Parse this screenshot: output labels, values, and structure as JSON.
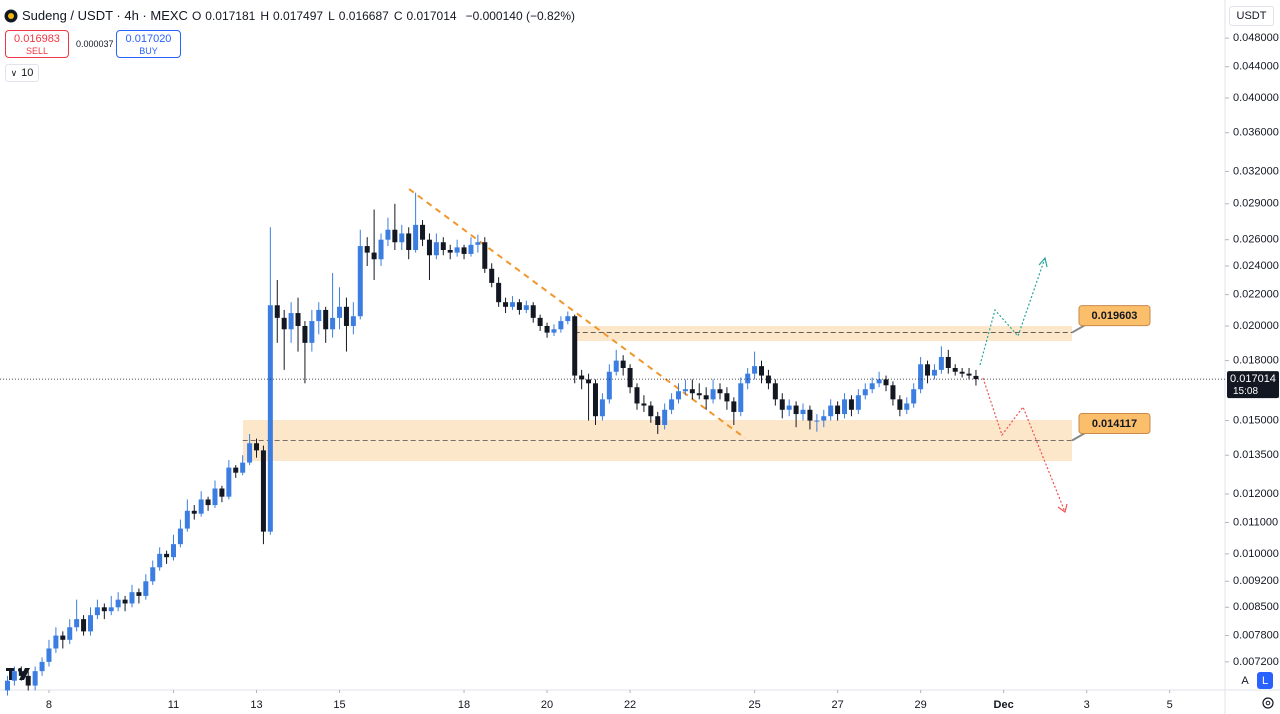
{
  "toolbar": {
    "symbol": "Sudeng / USDT · 4h · MEXC",
    "ohlc_labels": [
      "O",
      "H",
      "L",
      "C"
    ],
    "change": "−0.000140 (−0.82%)",
    "sell_price": "0.016983",
    "sell_label": "SELL",
    "spread": "0.000037",
    "buy_price": "0.017020",
    "buy_label": "BUY",
    "indicators": "10"
  },
  "scale_controls": {
    "currency": "USDT",
    "auto": "A",
    "log": "L",
    "countdown": "15:08"
  },
  "chart_data": {
    "type": "candlestick",
    "log_scale": true,
    "grid": false,
    "up_color": "#3b7de0",
    "down_color": "#131722",
    "candles": [
      [
        0.0066,
        0.0069,
        0.0065,
        0.0068
      ],
      [
        0.0068,
        0.0071,
        0.0067,
        0.007
      ],
      [
        0.007,
        0.0071,
        0.0068,
        0.0069
      ],
      [
        0.0069,
        0.007,
        0.0066,
        0.0067
      ],
      [
        0.0067,
        0.0071,
        0.0066,
        0.007
      ],
      [
        0.007,
        0.0073,
        0.0069,
        0.0072
      ],
      [
        0.0072,
        0.0077,
        0.0071,
        0.0075
      ],
      [
        0.0075,
        0.008,
        0.0074,
        0.0078
      ],
      [
        0.0078,
        0.0079,
        0.0075,
        0.0077
      ],
      [
        0.0077,
        0.0082,
        0.0076,
        0.008
      ],
      [
        0.008,
        0.0087,
        0.0079,
        0.0082
      ],
      [
        0.0082,
        0.0083,
        0.0078,
        0.0079
      ],
      [
        0.0079,
        0.0085,
        0.0078,
        0.0083
      ],
      [
        0.0083,
        0.0087,
        0.0082,
        0.0085
      ],
      [
        0.0085,
        0.0086,
        0.0082,
        0.0084
      ],
      [
        0.0084,
        0.0088,
        0.0083,
        0.0085
      ],
      [
        0.0085,
        0.0089,
        0.0084,
        0.0087
      ],
      [
        0.0087,
        0.0088,
        0.0084,
        0.0086
      ],
      [
        0.0086,
        0.0091,
        0.0085,
        0.0089
      ],
      [
        0.0089,
        0.009,
        0.0086,
        0.0088
      ],
      [
        0.0088,
        0.0094,
        0.0087,
        0.0092
      ],
      [
        0.0092,
        0.0098,
        0.0091,
        0.0096
      ],
      [
        0.0096,
        0.0102,
        0.0095,
        0.01
      ],
      [
        0.01,
        0.0101,
        0.0097,
        0.0099
      ],
      [
        0.0099,
        0.0106,
        0.0098,
        0.0103
      ],
      [
        0.0103,
        0.0111,
        0.0102,
        0.0108
      ],
      [
        0.0108,
        0.0118,
        0.0107,
        0.0114
      ],
      [
        0.0114,
        0.0116,
        0.0111,
        0.0113
      ],
      [
        0.0113,
        0.0121,
        0.0112,
        0.0118
      ],
      [
        0.0118,
        0.0119,
        0.0114,
        0.0116
      ],
      [
        0.0116,
        0.0125,
        0.0115,
        0.0122
      ],
      [
        0.0122,
        0.0123,
        0.0117,
        0.0119
      ],
      [
        0.0119,
        0.0133,
        0.0118,
        0.013
      ],
      [
        0.013,
        0.0131,
        0.0126,
        0.0128
      ],
      [
        0.0128,
        0.0135,
        0.0127,
        0.0132
      ],
      [
        0.0132,
        0.0144,
        0.0131,
        0.014
      ],
      [
        0.014,
        0.0142,
        0.0134,
        0.0137
      ],
      [
        0.0137,
        0.0139,
        0.0103,
        0.0107
      ],
      [
        0.0107,
        0.027,
        0.0106,
        0.0213
      ],
      [
        0.0213,
        0.023,
        0.019,
        0.0205
      ],
      [
        0.0205,
        0.021,
        0.0175,
        0.0198
      ],
      [
        0.0198,
        0.0215,
        0.019,
        0.0208
      ],
      [
        0.0208,
        0.0218,
        0.0185,
        0.02
      ],
      [
        0.02,
        0.0203,
        0.0168,
        0.019
      ],
      [
        0.019,
        0.021,
        0.0185,
        0.0203
      ],
      [
        0.0203,
        0.0215,
        0.0195,
        0.021
      ],
      [
        0.021,
        0.0212,
        0.019,
        0.0198
      ],
      [
        0.0198,
        0.0235,
        0.0193,
        0.0205
      ],
      [
        0.0205,
        0.0225,
        0.0198,
        0.0212
      ],
      [
        0.0212,
        0.0218,
        0.0185,
        0.02
      ],
      [
        0.02,
        0.0215,
        0.0195,
        0.0206
      ],
      [
        0.0206,
        0.0268,
        0.0204,
        0.0255
      ],
      [
        0.0255,
        0.0262,
        0.024,
        0.025
      ],
      [
        0.025,
        0.0285,
        0.023,
        0.0245
      ],
      [
        0.0245,
        0.0265,
        0.024,
        0.026
      ],
      [
        0.026,
        0.0278,
        0.0255,
        0.0268
      ],
      [
        0.0268,
        0.029,
        0.0252,
        0.0258
      ],
      [
        0.0258,
        0.0272,
        0.0252,
        0.0265
      ],
      [
        0.0265,
        0.027,
        0.0245,
        0.0252
      ],
      [
        0.0252,
        0.03,
        0.025,
        0.0272
      ],
      [
        0.0272,
        0.0276,
        0.0255,
        0.026
      ],
      [
        0.026,
        0.0265,
        0.023,
        0.0248
      ],
      [
        0.0248,
        0.0265,
        0.0245,
        0.0258
      ],
      [
        0.0258,
        0.0262,
        0.0248,
        0.0252
      ],
      [
        0.0252,
        0.0256,
        0.0245,
        0.025
      ],
      [
        0.025,
        0.026,
        0.0247,
        0.0254
      ],
      [
        0.0254,
        0.0256,
        0.0245,
        0.0249
      ],
      [
        0.0249,
        0.0262,
        0.0247,
        0.0256
      ],
      [
        0.0256,
        0.0264,
        0.025,
        0.0258
      ],
      [
        0.0258,
        0.0262,
        0.0235,
        0.0238
      ],
      [
        0.0238,
        0.0242,
        0.0225,
        0.0228
      ],
      [
        0.0228,
        0.0232,
        0.0212,
        0.0215
      ],
      [
        0.0215,
        0.0218,
        0.0208,
        0.0212
      ],
      [
        0.0212,
        0.0219,
        0.021,
        0.0215
      ],
      [
        0.0215,
        0.0217,
        0.0207,
        0.021
      ],
      [
        0.021,
        0.0216,
        0.0208,
        0.0213
      ],
      [
        0.0213,
        0.0215,
        0.0202,
        0.0205
      ],
      [
        0.0205,
        0.0207,
        0.0197,
        0.02
      ],
      [
        0.02,
        0.0202,
        0.0193,
        0.0196
      ],
      [
        0.0196,
        0.0201,
        0.0194,
        0.0198
      ],
      [
        0.0198,
        0.0206,
        0.0196,
        0.0203
      ],
      [
        0.0203,
        0.0209,
        0.0201,
        0.0206
      ],
      [
        0.0206,
        0.0207,
        0.0168,
        0.0172
      ],
      [
        0.0172,
        0.0175,
        0.0165,
        0.017
      ],
      [
        0.017,
        0.0173,
        0.015,
        0.0168
      ],
      [
        0.0168,
        0.017,
        0.0148,
        0.0152
      ],
      [
        0.0152,
        0.0163,
        0.015,
        0.016
      ],
      [
        0.016,
        0.0178,
        0.0158,
        0.0174
      ],
      [
        0.0174,
        0.0186,
        0.0172,
        0.018
      ],
      [
        0.018,
        0.0183,
        0.0172,
        0.0176
      ],
      [
        0.0176,
        0.0178,
        0.0163,
        0.0166
      ],
      [
        0.0166,
        0.0168,
        0.0155,
        0.0158
      ],
      [
        0.0158,
        0.0162,
        0.0154,
        0.0157
      ],
      [
        0.0157,
        0.0159,
        0.0149,
        0.0152
      ],
      [
        0.0152,
        0.0154,
        0.0144,
        0.0148
      ],
      [
        0.0148,
        0.0158,
        0.0146,
        0.0155
      ],
      [
        0.0155,
        0.0163,
        0.0153,
        0.016
      ],
      [
        0.016,
        0.0168,
        0.0158,
        0.0164
      ],
      [
        0.0164,
        0.017,
        0.0162,
        0.0165
      ],
      [
        0.0165,
        0.017,
        0.016,
        0.0163
      ],
      [
        0.0163,
        0.0168,
        0.016,
        0.0162
      ],
      [
        0.0162,
        0.0166,
        0.0155,
        0.016
      ],
      [
        0.016,
        0.017,
        0.0158,
        0.0165
      ],
      [
        0.0165,
        0.0168,
        0.016,
        0.0163
      ],
      [
        0.0163,
        0.0166,
        0.0155,
        0.0159
      ],
      [
        0.0159,
        0.0161,
        0.0148,
        0.0154
      ],
      [
        0.0154,
        0.0171,
        0.0152,
        0.0168
      ],
      [
        0.0168,
        0.0176,
        0.0165,
        0.0173
      ],
      [
        0.0173,
        0.0185,
        0.017,
        0.0177
      ],
      [
        0.0177,
        0.018,
        0.0168,
        0.0172
      ],
      [
        0.0172,
        0.0175,
        0.0165,
        0.0168
      ],
      [
        0.0168,
        0.017,
        0.0157,
        0.016
      ],
      [
        0.016,
        0.0163,
        0.0151,
        0.0155
      ],
      [
        0.0155,
        0.016,
        0.0152,
        0.0157
      ],
      [
        0.0157,
        0.0159,
        0.0147,
        0.0153
      ],
      [
        0.0153,
        0.0158,
        0.015,
        0.0155
      ],
      [
        0.0155,
        0.0157,
        0.0146,
        0.015
      ],
      [
        0.015,
        0.0153,
        0.0145,
        0.015
      ],
      [
        0.015,
        0.0155,
        0.0147,
        0.0152
      ],
      [
        0.0152,
        0.016,
        0.015,
        0.0157
      ],
      [
        0.0157,
        0.0159,
        0.015,
        0.0153
      ],
      [
        0.0153,
        0.0163,
        0.0151,
        0.016
      ],
      [
        0.016,
        0.0162,
        0.0152,
        0.0155
      ],
      [
        0.0155,
        0.0165,
        0.0153,
        0.0162
      ],
      [
        0.0162,
        0.0168,
        0.016,
        0.0165
      ],
      [
        0.0165,
        0.0171,
        0.0163,
        0.0168
      ],
      [
        0.0168,
        0.0174,
        0.0166,
        0.017
      ],
      [
        0.017,
        0.0172,
        0.0164,
        0.0167
      ],
      [
        0.0167,
        0.0169,
        0.0157,
        0.016
      ],
      [
        0.016,
        0.0162,
        0.0152,
        0.0155
      ],
      [
        0.0155,
        0.0161,
        0.0153,
        0.0158
      ],
      [
        0.0158,
        0.0168,
        0.0156,
        0.0165
      ],
      [
        0.0165,
        0.0182,
        0.0163,
        0.0178
      ],
      [
        0.0178,
        0.018,
        0.0168,
        0.0172
      ],
      [
        0.0172,
        0.0178,
        0.017,
        0.0175
      ],
      [
        0.0175,
        0.0188,
        0.0173,
        0.0182
      ],
      [
        0.0182,
        0.0186,
        0.0173,
        0.0176
      ],
      [
        0.0176,
        0.0178,
        0.0172,
        0.0174
      ],
      [
        0.0174,
        0.0176,
        0.0171,
        0.0173
      ],
      [
        0.0173,
        0.0176,
        0.017,
        0.0172
      ],
      [
        0.017181,
        0.017497,
        0.016687,
        0.017014
      ]
    ],
    "levels": [
      0.019603,
      0.014117
    ],
    "xlim": [
      -1.08,
      176
    ],
    "xticks": [
      {
        "value": 6,
        "label": "8"
      },
      {
        "value": 24,
        "label": "11"
      },
      {
        "value": 36,
        "label": "13"
      },
      {
        "value": 48,
        "label": "15"
      },
      {
        "value": 66,
        "label": "18"
      },
      {
        "value": 78,
        "label": "20"
      },
      {
        "value": 90,
        "label": "22"
      },
      {
        "value": 108,
        "label": "25"
      },
      {
        "value": 120,
        "label": "27"
      },
      {
        "value": 132,
        "label": "29"
      },
      {
        "value": 144,
        "label": "Dec"
      },
      {
        "value": 156,
        "label": "3"
      },
      {
        "value": 168,
        "label": "5"
      }
    ],
    "ylim": [
      0.00661,
      0.0539
    ],
    "yticks": [
      {
        "value": 0.048,
        "label": "0.048000"
      },
      {
        "value": 0.044,
        "label": "0.044000"
      },
      {
        "value": 0.04,
        "label": "0.040000"
      },
      {
        "value": 0.036,
        "label": "0.036000"
      },
      {
        "value": 0.032,
        "label": "0.032000"
      },
      {
        "value": 0.029,
        "label": "0.029000"
      },
      {
        "value": 0.026,
        "label": "0.026000"
      },
      {
        "value": 0.024,
        "label": "0.024000"
      },
      {
        "value": 0.022,
        "label": "0.022000"
      },
      {
        "value": 0.02,
        "label": "0.020000"
      },
      {
        "value": 0.018,
        "label": "0.018000"
      },
      {
        "value": 0.015,
        "label": "0.015000"
      },
      {
        "value": 0.0135,
        "label": "0.013500"
      },
      {
        "value": 0.012,
        "label": "0.012000"
      },
      {
        "value": 0.011,
        "label": "0.011000"
      },
      {
        "value": 0.01,
        "label": "0.010000"
      },
      {
        "value": 0.0092,
        "label": "0.009200"
      },
      {
        "value": 0.0085,
        "label": "0.008500"
      },
      {
        "value": 0.0078,
        "label": "0.007800"
      },
      {
        "value": 0.0072,
        "label": "0.007200"
      }
    ]
  }
}
